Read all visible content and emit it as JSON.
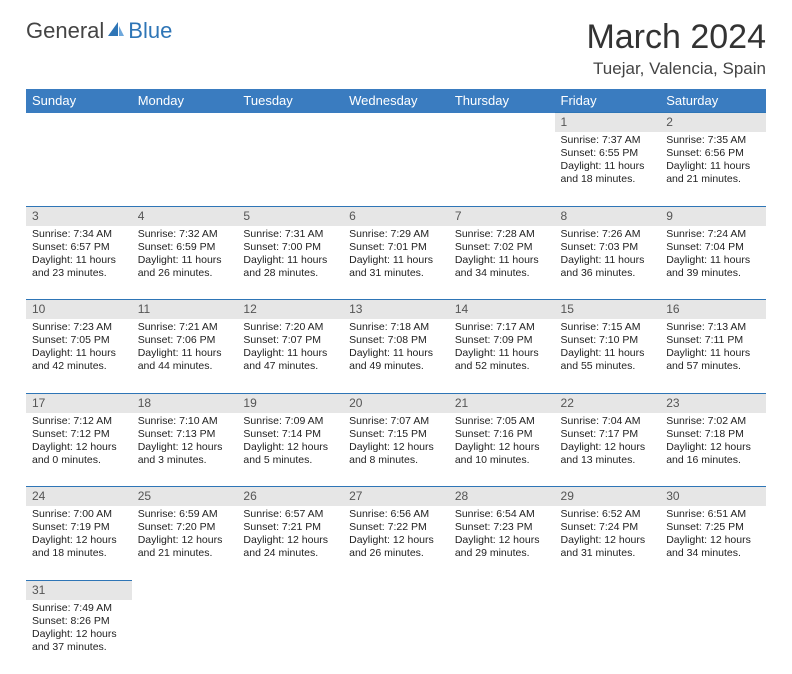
{
  "logo": {
    "part1": "General",
    "part2": "Blue",
    "sail_color": "#2e75b6"
  },
  "title": "March 2024",
  "location": "Tuejar, Valencia, Spain",
  "header_bg": "#3a7cc0",
  "daynum_bg": "#e6e6e6",
  "divider_color": "#2e75b6",
  "weekdays": [
    "Sunday",
    "Monday",
    "Tuesday",
    "Wednesday",
    "Thursday",
    "Friday",
    "Saturday"
  ],
  "weeks": [
    {
      "nums": [
        "",
        "",
        "",
        "",
        "",
        "1",
        "2"
      ],
      "cells": [
        null,
        null,
        null,
        null,
        null,
        {
          "sr": "Sunrise: 7:37 AM",
          "ss": "Sunset: 6:55 PM",
          "d1": "Daylight: 11 hours",
          "d2": "and 18 minutes."
        },
        {
          "sr": "Sunrise: 7:35 AM",
          "ss": "Sunset: 6:56 PM",
          "d1": "Daylight: 11 hours",
          "d2": "and 21 minutes."
        }
      ]
    },
    {
      "nums": [
        "3",
        "4",
        "5",
        "6",
        "7",
        "8",
        "9"
      ],
      "cells": [
        {
          "sr": "Sunrise: 7:34 AM",
          "ss": "Sunset: 6:57 PM",
          "d1": "Daylight: 11 hours",
          "d2": "and 23 minutes."
        },
        {
          "sr": "Sunrise: 7:32 AM",
          "ss": "Sunset: 6:59 PM",
          "d1": "Daylight: 11 hours",
          "d2": "and 26 minutes."
        },
        {
          "sr": "Sunrise: 7:31 AM",
          "ss": "Sunset: 7:00 PM",
          "d1": "Daylight: 11 hours",
          "d2": "and 28 minutes."
        },
        {
          "sr": "Sunrise: 7:29 AM",
          "ss": "Sunset: 7:01 PM",
          "d1": "Daylight: 11 hours",
          "d2": "and 31 minutes."
        },
        {
          "sr": "Sunrise: 7:28 AM",
          "ss": "Sunset: 7:02 PM",
          "d1": "Daylight: 11 hours",
          "d2": "and 34 minutes."
        },
        {
          "sr": "Sunrise: 7:26 AM",
          "ss": "Sunset: 7:03 PM",
          "d1": "Daylight: 11 hours",
          "d2": "and 36 minutes."
        },
        {
          "sr": "Sunrise: 7:24 AM",
          "ss": "Sunset: 7:04 PM",
          "d1": "Daylight: 11 hours",
          "d2": "and 39 minutes."
        }
      ]
    },
    {
      "nums": [
        "10",
        "11",
        "12",
        "13",
        "14",
        "15",
        "16"
      ],
      "cells": [
        {
          "sr": "Sunrise: 7:23 AM",
          "ss": "Sunset: 7:05 PM",
          "d1": "Daylight: 11 hours",
          "d2": "and 42 minutes."
        },
        {
          "sr": "Sunrise: 7:21 AM",
          "ss": "Sunset: 7:06 PM",
          "d1": "Daylight: 11 hours",
          "d2": "and 44 minutes."
        },
        {
          "sr": "Sunrise: 7:20 AM",
          "ss": "Sunset: 7:07 PM",
          "d1": "Daylight: 11 hours",
          "d2": "and 47 minutes."
        },
        {
          "sr": "Sunrise: 7:18 AM",
          "ss": "Sunset: 7:08 PM",
          "d1": "Daylight: 11 hours",
          "d2": "and 49 minutes."
        },
        {
          "sr": "Sunrise: 7:17 AM",
          "ss": "Sunset: 7:09 PM",
          "d1": "Daylight: 11 hours",
          "d2": "and 52 minutes."
        },
        {
          "sr": "Sunrise: 7:15 AM",
          "ss": "Sunset: 7:10 PM",
          "d1": "Daylight: 11 hours",
          "d2": "and 55 minutes."
        },
        {
          "sr": "Sunrise: 7:13 AM",
          "ss": "Sunset: 7:11 PM",
          "d1": "Daylight: 11 hours",
          "d2": "and 57 minutes."
        }
      ]
    },
    {
      "nums": [
        "17",
        "18",
        "19",
        "20",
        "21",
        "22",
        "23"
      ],
      "cells": [
        {
          "sr": "Sunrise: 7:12 AM",
          "ss": "Sunset: 7:12 PM",
          "d1": "Daylight: 12 hours",
          "d2": "and 0 minutes."
        },
        {
          "sr": "Sunrise: 7:10 AM",
          "ss": "Sunset: 7:13 PM",
          "d1": "Daylight: 12 hours",
          "d2": "and 3 minutes."
        },
        {
          "sr": "Sunrise: 7:09 AM",
          "ss": "Sunset: 7:14 PM",
          "d1": "Daylight: 12 hours",
          "d2": "and 5 minutes."
        },
        {
          "sr": "Sunrise: 7:07 AM",
          "ss": "Sunset: 7:15 PM",
          "d1": "Daylight: 12 hours",
          "d2": "and 8 minutes."
        },
        {
          "sr": "Sunrise: 7:05 AM",
          "ss": "Sunset: 7:16 PM",
          "d1": "Daylight: 12 hours",
          "d2": "and 10 minutes."
        },
        {
          "sr": "Sunrise: 7:04 AM",
          "ss": "Sunset: 7:17 PM",
          "d1": "Daylight: 12 hours",
          "d2": "and 13 minutes."
        },
        {
          "sr": "Sunrise: 7:02 AM",
          "ss": "Sunset: 7:18 PM",
          "d1": "Daylight: 12 hours",
          "d2": "and 16 minutes."
        }
      ]
    },
    {
      "nums": [
        "24",
        "25",
        "26",
        "27",
        "28",
        "29",
        "30"
      ],
      "cells": [
        {
          "sr": "Sunrise: 7:00 AM",
          "ss": "Sunset: 7:19 PM",
          "d1": "Daylight: 12 hours",
          "d2": "and 18 minutes."
        },
        {
          "sr": "Sunrise: 6:59 AM",
          "ss": "Sunset: 7:20 PM",
          "d1": "Daylight: 12 hours",
          "d2": "and 21 minutes."
        },
        {
          "sr": "Sunrise: 6:57 AM",
          "ss": "Sunset: 7:21 PM",
          "d1": "Daylight: 12 hours",
          "d2": "and 24 minutes."
        },
        {
          "sr": "Sunrise: 6:56 AM",
          "ss": "Sunset: 7:22 PM",
          "d1": "Daylight: 12 hours",
          "d2": "and 26 minutes."
        },
        {
          "sr": "Sunrise: 6:54 AM",
          "ss": "Sunset: 7:23 PM",
          "d1": "Daylight: 12 hours",
          "d2": "and 29 minutes."
        },
        {
          "sr": "Sunrise: 6:52 AM",
          "ss": "Sunset: 7:24 PM",
          "d1": "Daylight: 12 hours",
          "d2": "and 31 minutes."
        },
        {
          "sr": "Sunrise: 6:51 AM",
          "ss": "Sunset: 7:25 PM",
          "d1": "Daylight: 12 hours",
          "d2": "and 34 minutes."
        }
      ]
    },
    {
      "nums": [
        "31",
        "",
        "",
        "",
        "",
        "",
        ""
      ],
      "cells": [
        {
          "sr": "Sunrise: 7:49 AM",
          "ss": "Sunset: 8:26 PM",
          "d1": "Daylight: 12 hours",
          "d2": "and 37 minutes."
        },
        null,
        null,
        null,
        null,
        null,
        null
      ]
    }
  ]
}
